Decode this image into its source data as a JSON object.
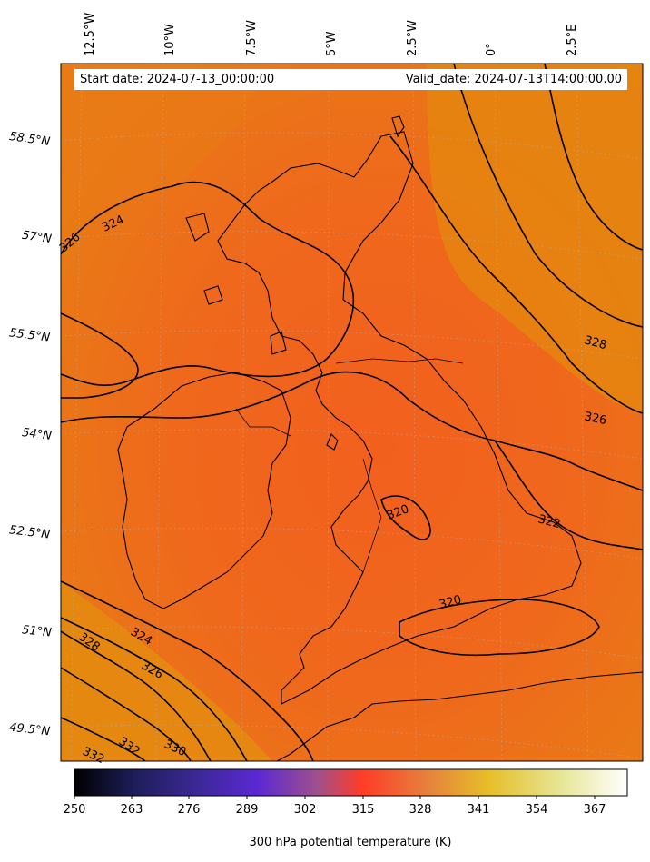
{
  "header": {
    "start_date": "Start date: 2024-07-13_00:00:00",
    "valid_date": "Valid_date: 2024-07-13T14:00:00.00"
  },
  "lon_labels": [
    "12.5°W",
    "10°W",
    "7.5°W",
    "5°W",
    "2.5°W",
    "0°",
    "2.5°E"
  ],
  "lat_labels": [
    "58.5°N",
    "57°N",
    "55.5°N",
    "54°N",
    "52.5°N",
    "51°N",
    "49.5°N"
  ],
  "contour_labels": [
    "326",
    "324",
    "328",
    "326",
    "320",
    "322",
    "320",
    "328",
    "324",
    "326",
    "330",
    "332",
    "332"
  ],
  "colorbar": {
    "ticks": [
      "250",
      "263",
      "276",
      "289",
      "302",
      "315",
      "328",
      "341",
      "354",
      "367"
    ],
    "label": "300 hPa potential temperature (K)",
    "colormap": "CMRmap",
    "stops": [
      "#000000",
      "#1e1e5a",
      "#3c2896",
      "#5a28d2",
      "#a0508c",
      "#ff3c28",
      "#e6823c",
      "#e6be28",
      "#e6e696",
      "#ffffff"
    ]
  },
  "colors": {
    "field_warm": "#f06a1e",
    "field_cool": "#e5850f",
    "contour": "#000000"
  }
}
